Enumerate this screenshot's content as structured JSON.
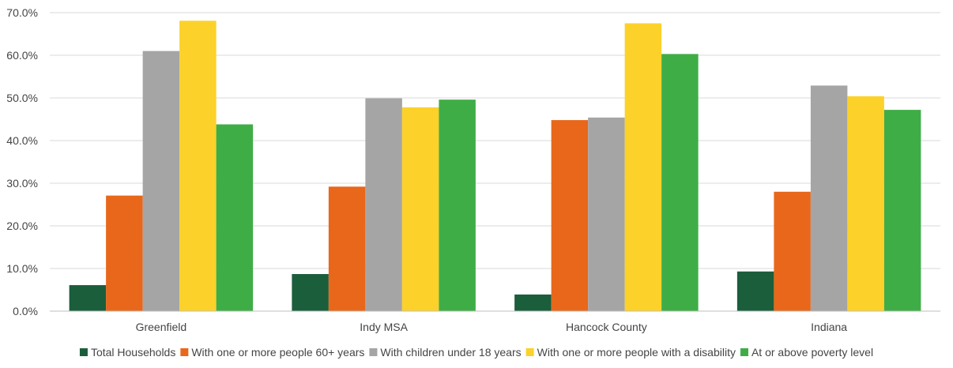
{
  "chart_data": {
    "type": "bar",
    "title": "",
    "xlabel": "",
    "ylabel": "",
    "ylim": [
      0,
      70
    ],
    "y_ticks": [
      "0.0%",
      "10.0%",
      "20.0%",
      "30.0%",
      "40.0%",
      "50.0%",
      "60.0%",
      "70.0%"
    ],
    "y_tick_values": [
      0,
      10,
      20,
      30,
      40,
      50,
      60,
      70
    ],
    "grid": true,
    "legend_position": "bottom",
    "categories": [
      "Greenfield",
      "Indy MSA",
      "Hancock County",
      "Indiana"
    ],
    "series": [
      {
        "name": "Total Households",
        "color": "#1b5e3b",
        "values": [
          6.1,
          8.7,
          3.9,
          9.3
        ]
      },
      {
        "name": "With one or more people 60+ years",
        "color": "#e8671b",
        "values": [
          27.1,
          29.2,
          44.8,
          28.0
        ]
      },
      {
        "name": "With children under 18 years",
        "color": "#a5a5a5",
        "values": [
          61.0,
          49.9,
          45.4,
          52.9
        ]
      },
      {
        "name": "With one or more people with a disability",
        "color": "#fcd12a",
        "values": [
          68.1,
          47.8,
          67.5,
          50.4
        ]
      },
      {
        "name": "At or above poverty level",
        "color": "#3fad46",
        "values": [
          43.8,
          49.6,
          60.3,
          47.2
        ]
      }
    ]
  }
}
